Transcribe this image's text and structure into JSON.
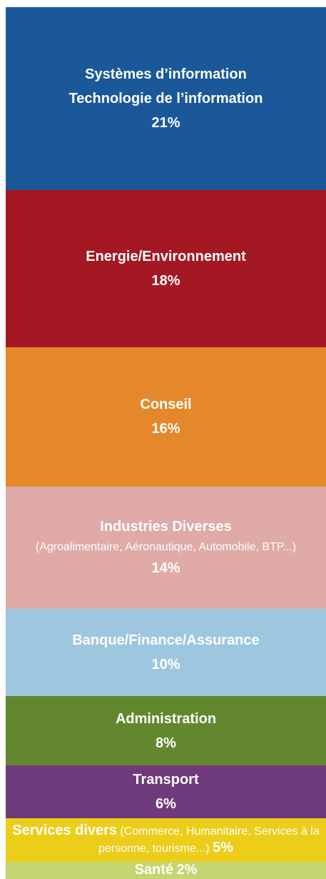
{
  "chart_data": {
    "type": "stacked-column",
    "series": [
      {
        "name": "Systèmes d’information\nTechnologie de l’information",
        "color": "#1b5899",
        "values": [
          21
        ],
        "value_labels": [
          "21%"
        ]
      },
      {
        "name": "Energie/Environnement",
        "color": "#a31822",
        "values": [
          18
        ],
        "value_labels": [
          "18%"
        ]
      },
      {
        "name": "Conseil",
        "color": "#e5882b",
        "values": [
          16
        ],
        "value_labels": [
          "16%"
        ]
      },
      {
        "name": "Industries Diverses",
        "detail": "(Agroalimentaire, Aéronautique, Automobile, BTP...)",
        "color": "#dfaaa7",
        "values": [
          14
        ],
        "value_labels": [
          "14%"
        ]
      },
      {
        "name": "Banque/Finance/Assurance",
        "color": "#9ec6df",
        "values": [
          10
        ],
        "value_labels": [
          "10%"
        ]
      },
      {
        "name": "Administration",
        "color": "#63872f",
        "values": [
          8
        ],
        "value_labels": [
          "8%"
        ]
      },
      {
        "name": "Transport",
        "color": "#6f3a7b",
        "values": [
          6
        ],
        "value_labels": [
          "6%"
        ]
      },
      {
        "name": "Services divers",
        "detail": "(Commerce, Humanitaire, Services à la personne, tourisme...)",
        "color": "#eccd1a",
        "values": [
          5
        ],
        "value_labels": [
          "5%"
        ]
      },
      {
        "name": "Santé",
        "color": "#c5d56f",
        "values": [
          2
        ],
        "value_labels": [
          "2%"
        ]
      }
    ]
  }
}
